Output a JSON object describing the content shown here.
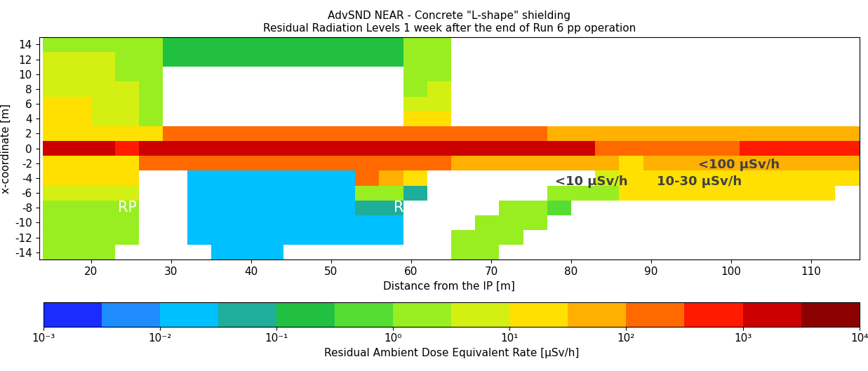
{
  "chart_data": {
    "type": "heatmap",
    "title": "AdvSND NEAR - Concrete \"L-shape\" shielding\nResidual Radiation Levels 1 week after the end of Run 6 pp operation",
    "x_label": "Distance from the IP [m]",
    "y_label": "x-coordinate [m]",
    "xlim": [
      13.5,
      116
    ],
    "ylim": [
      -15,
      15
    ],
    "xticks": [
      20,
      30,
      40,
      50,
      60,
      70,
      80,
      90,
      100,
      110
    ],
    "yticks": [
      -14,
      -12,
      -10,
      -8,
      -6,
      -4,
      -2,
      0,
      2,
      4,
      6,
      8,
      10,
      12,
      14
    ],
    "x_edges": [
      14,
      17,
      20,
      23,
      26,
      29,
      32,
      35,
      38,
      41,
      44,
      47,
      50,
      53,
      56,
      59,
      62,
      65,
      68,
      71,
      74,
      77,
      80,
      83,
      86,
      89,
      92,
      95,
      98,
      101,
      104,
      107,
      110,
      113,
      116
    ],
    "y_edges": [
      15,
      13,
      11,
      9,
      7,
      5,
      3,
      1,
      -1,
      -3,
      -5,
      -7,
      -9,
      -11,
      -13,
      -15
    ],
    "cells": [
      [
        3,
        3,
        3,
        2,
        1,
        0.1,
        0.1,
        0.1,
        0.1,
        0.1,
        0.1,
        0.1,
        0.1,
        0.1,
        0.3,
        1,
        1,
        null,
        null,
        null,
        null,
        null,
        null,
        null,
        null,
        null,
        null,
        null,
        null,
        null,
        null,
        null,
        null,
        null
      ],
      [
        5,
        5,
        5,
        3,
        1,
        0.1,
        0.1,
        0.1,
        0.1,
        0.1,
        0.1,
        0.1,
        0.1,
        0.1,
        0.2,
        1,
        2,
        null,
        null,
        null,
        null,
        null,
        null,
        null,
        null,
        null,
        null,
        null,
        null,
        null,
        null,
        null,
        null,
        null
      ],
      [
        5,
        5,
        5,
        3,
        2,
        null,
        null,
        null,
        null,
        null,
        null,
        null,
        null,
        null,
        null,
        3,
        3,
        null,
        null,
        null,
        null,
        null,
        null,
        null,
        null,
        null,
        null,
        null,
        null,
        null,
        null,
        null,
        null,
        null
      ],
      [
        8,
        8,
        6,
        4,
        3,
        null,
        null,
        null,
        null,
        null,
        null,
        null,
        null,
        null,
        null,
        3,
        5,
        null,
        null,
        null,
        null,
        null,
        null,
        null,
        null,
        null,
        null,
        null,
        null,
        null,
        null,
        null,
        null,
        null
      ],
      [
        10,
        10,
        8,
        5,
        3,
        null,
        null,
        null,
        null,
        null,
        null,
        null,
        null,
        null,
        null,
        5,
        8,
        null,
        null,
        null,
        null,
        null,
        null,
        null,
        null,
        null,
        null,
        null,
        null,
        null,
        null,
        null,
        null,
        null
      ],
      [
        10,
        10,
        8,
        6,
        3,
        null,
        null,
        null,
        null,
        null,
        null,
        null,
        null,
        null,
        null,
        10,
        15,
        null,
        null,
        null,
        null,
        null,
        null,
        null,
        null,
        null,
        null,
        null,
        null,
        null,
        null,
        null,
        null,
        null
      ],
      [
        30,
        20,
        20,
        15,
        30,
        150,
        150,
        150,
        150,
        150,
        150,
        150,
        150,
        150,
        150,
        100,
        100,
        100,
        100,
        100,
        100,
        50,
        50,
        50,
        50,
        50,
        50,
        50,
        50,
        50,
        50,
        50,
        50,
        50
      ],
      [
        1000,
        1000,
        1000,
        700,
        2000,
        1500,
        2000,
        1500,
        2000,
        1500,
        2000,
        1500,
        2000,
        1500,
        2000,
        1500,
        2000,
        1500,
        2000,
        1500,
        2000,
        1500,
        2000,
        300,
        300,
        300,
        300,
        300,
        300,
        800,
        800,
        800,
        800,
        800
      ],
      [
        20,
        20,
        20,
        20,
        150,
        150,
        150,
        150,
        150,
        150,
        150,
        150,
        150,
        150,
        150,
        100,
        100,
        70,
        70,
        70,
        70,
        70,
        70,
        50,
        30,
        60,
        60,
        60,
        60,
        60,
        60,
        60,
        60,
        60
      ],
      [
        10,
        10,
        10,
        10,
        null,
        null,
        0.03,
        0.03,
        0.03,
        0.03,
        0.03,
        0.03,
        0.03,
        100,
        50,
        10,
        null,
        null,
        null,
        null,
        null,
        null,
        null,
        5,
        20,
        20,
        20,
        20,
        20,
        20,
        20,
        20,
        20,
        15
      ],
      [
        5,
        5,
        5,
        5,
        null,
        null,
        0.03,
        0.03,
        0.03,
        0.03,
        0.03,
        0.03,
        0.03,
        3,
        1,
        0.05,
        null,
        null,
        null,
        null,
        null,
        1,
        2,
        3,
        10,
        10,
        10,
        10,
        10,
        10,
        10,
        10,
        10,
        null
      ],
      [
        3,
        3,
        3,
        3,
        null,
        null,
        0.03,
        0.03,
        0.03,
        0.03,
        0.03,
        0.03,
        0.03,
        0.05,
        0.05,
        null,
        null,
        null,
        null,
        1,
        1,
        0.5,
        null,
        null,
        null,
        null,
        null,
        null,
        null,
        null,
        null,
        null,
        null,
        null
      ],
      [
        3,
        3,
        3,
        3,
        null,
        null,
        0.03,
        0.03,
        0.03,
        0.03,
        0.03,
        0.03,
        0.03,
        0.03,
        0.03,
        null,
        null,
        null,
        1,
        1,
        1,
        null,
        null,
        null,
        null,
        null,
        null,
        null,
        null,
        null,
        null,
        null,
        null,
        null
      ],
      [
        3,
        3,
        3,
        2,
        null,
        null,
        0.03,
        0.03,
        0.03,
        0.03,
        0.03,
        0.03,
        0.03,
        0.03,
        0.03,
        null,
        null,
        1,
        1,
        1,
        null,
        null,
        null,
        null,
        null,
        null,
        null,
        null,
        null,
        null,
        null,
        null,
        null,
        null
      ],
      [
        2,
        2,
        2,
        null,
        null,
        null,
        null,
        0.03,
        0.03,
        0.03,
        null,
        null,
        null,
        null,
        null,
        null,
        null,
        1,
        1,
        null,
        null,
        null,
        null,
        null,
        null,
        null,
        null,
        null,
        null,
        null,
        null,
        null,
        null,
        null
      ]
    ],
    "colorbar": {
      "label": "Residual Ambient Dose Equivalent Rate [µSv/h]",
      "range": [
        0.001,
        10000
      ],
      "colors": [
        "#1a2cff",
        "#1e8cff",
        "#00c0ff",
        "#1fae9a",
        "#22c040",
        "#55dd33",
        "#99ee22",
        "#d4f012",
        "#ffe000",
        "#ffb000",
        "#ff6a00",
        "#ff1a00",
        "#cc0000",
        "#8b0000"
      ],
      "ticks": [
        {
          "value": 0.001,
          "label": "10⁻³"
        },
        {
          "value": 0.01,
          "label": "10⁻²"
        },
        {
          "value": 0.1,
          "label": "10⁻¹"
        },
        {
          "value": 1,
          "label": "10⁰"
        },
        {
          "value": 10,
          "label": "10¹"
        },
        {
          "value": 100,
          "label": "10²"
        },
        {
          "value": 1000,
          "label": "10³"
        },
        {
          "value": 10000,
          "label": "10⁴"
        }
      ]
    },
    "annotations": [
      {
        "text": "<100 µSv/h",
        "x": 101,
        "y": -2.2
      },
      {
        "text": "<10 µSv/h",
        "x": 82.5,
        "y": -4.5
      },
      {
        "text": "10-30 µSv/h",
        "x": 96,
        "y": -4.5
      },
      {
        "text": "RP",
        "x": 24.5,
        "y": -8
      },
      {
        "text": "RS",
        "x": 59,
        "y": -8
      }
    ]
  }
}
